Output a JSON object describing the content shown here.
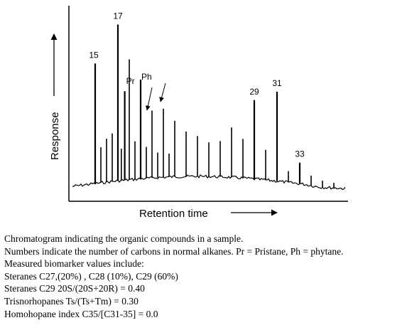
{
  "chart_data": {
    "type": "chromatogram",
    "xlabel": "Retention time",
    "ylabel": "Response",
    "peaks": [
      {
        "x": 15,
        "y": 0.74,
        "label": "15"
      },
      {
        "x": 15.5,
        "y": 0.22
      },
      {
        "x": 16,
        "y": 0.27
      },
      {
        "x": 16.5,
        "y": 0.3
      },
      {
        "x": 17,
        "y": 0.98,
        "label": "17"
      },
      {
        "x": 17.3,
        "y": 0.2
      },
      {
        "x": 17.6,
        "y": 0.56,
        "label": "Pr"
      },
      {
        "x": 18,
        "y": 0.76
      },
      {
        "x": 18.5,
        "y": 0.24
      },
      {
        "x": 19,
        "y": 0.63,
        "label": "Ph"
      },
      {
        "x": 19.5,
        "y": 0.2
      },
      {
        "x": 20,
        "y": 0.43
      },
      {
        "x": 20.5,
        "y": 0.16
      },
      {
        "x": 21,
        "y": 0.44
      },
      {
        "x": 21.5,
        "y": 0.15
      },
      {
        "x": 22,
        "y": 0.36
      },
      {
        "x": 23,
        "y": 0.29
      },
      {
        "x": 24,
        "y": 0.26
      },
      {
        "x": 25,
        "y": 0.22
      },
      {
        "x": 26,
        "y": 0.23
      },
      {
        "x": 27,
        "y": 0.32
      },
      {
        "x": 28,
        "y": 0.25
      },
      {
        "x": 29,
        "y": 0.5,
        "label": "29"
      },
      {
        "x": 30,
        "y": 0.19
      },
      {
        "x": 31,
        "y": 0.56,
        "label": "31"
      },
      {
        "x": 32,
        "y": 0.07
      },
      {
        "x": 33,
        "y": 0.13,
        "label": "33"
      },
      {
        "x": 34,
        "y": 0.06
      },
      {
        "x": 35,
        "y": 0.04
      },
      {
        "x": 36,
        "y": 0.03
      }
    ],
    "xlim": [
      13,
      37
    ],
    "ylim": [
      0,
      1
    ],
    "grid": false
  },
  "caption": {
    "line1": "Chromatogram indicating the organic compounds in a sample.",
    "line2": "Numbers indicate the number of carbons in normal alkanes. Pr = Pristane, Ph = phytane.",
    "line3": "Measured biomarker values include:",
    "line4": "Steranes C27,(20%) , C28 (10%), C29  (60%)",
    "line5": "Steranes C29 20S/(20S+20R) = 0.40",
    "line6": "Trisnorhopanes Ts/(Ts+Tm) = 0.30",
    "line7": "Homohopane index  C35/[C31-35] = 0.0"
  }
}
